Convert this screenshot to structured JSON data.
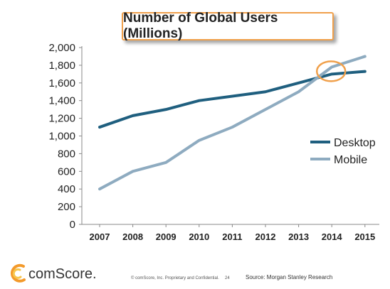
{
  "chart_data": {
    "type": "line",
    "title": "Number of Global Users (Millions)",
    "x": [
      "2007",
      "2008",
      "2009",
      "2010",
      "2011",
      "2012",
      "2013",
      "2014",
      "2015"
    ],
    "ylim": [
      0,
      2000
    ],
    "yticks": [
      "0",
      "200",
      "400",
      "600",
      "800",
      "1,000",
      "1,200",
      "1,400",
      "1,600",
      "1,800",
      "2,000"
    ],
    "grid": false,
    "legend": "right",
    "series": [
      {
        "name": "Desktop",
        "color": "#1f5f7f",
        "values": [
          1100,
          1230,
          1300,
          1400,
          1450,
          1500,
          1600,
          1700,
          1730
        ]
      },
      {
        "name": "Mobile",
        "color": "#8eabc0",
        "values": [
          400,
          600,
          700,
          950,
          1100,
          1300,
          1500,
          1780,
          1900
        ]
      }
    ],
    "annotation": {
      "type": "circle",
      "color": "#f0a04b",
      "note_year": "2014",
      "note_value": 1700
    }
  },
  "footer": {
    "brand": "comScore.",
    "copyright": "© comScore, Inc.   Proprietary and Confidential.",
    "page": "24",
    "source": "Source: Morgan Stanley Research",
    "logo_colors": [
      "#f39a2b",
      "#f7c54b",
      "#1f7bb4"
    ]
  }
}
